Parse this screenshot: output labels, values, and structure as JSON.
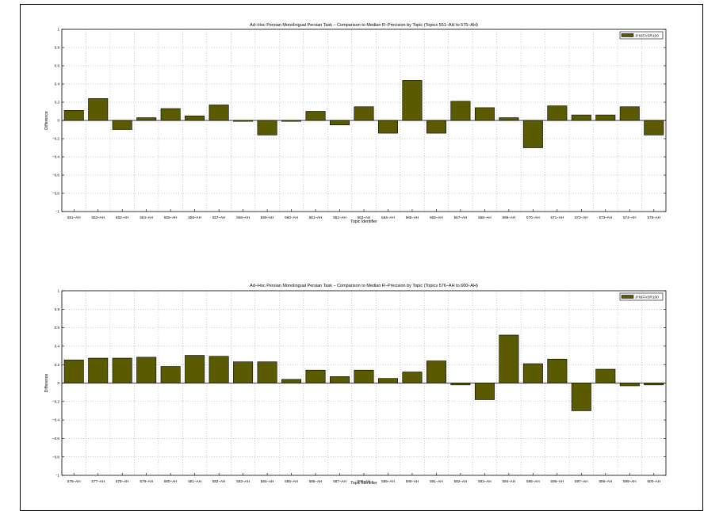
{
  "chart_data": [
    {
      "type": "bar",
      "title": "Ad–Hoc Persian Monolingual Persian Task – Comparison to Median R–Precision by Topic (Topics 551–AH to 575–AH)",
      "xlabel": "Topic Identifier",
      "ylabel": "Difference",
      "ylim": [
        -1,
        1
      ],
      "yticks": [
        "−1",
        "−0.8",
        "−0.6",
        "−0.4",
        "−0.2",
        "0",
        "0.2",
        "0.4",
        "0.6",
        "0.8",
        "1"
      ],
      "grid": true,
      "legend_position": "top-right",
      "series": [
        {
          "name": "JHUFASR100",
          "color": "#5a5a00"
        }
      ],
      "categories": [
        "551–AH",
        "552–AH",
        "553–AH",
        "554–AH",
        "555–AH",
        "556–AH",
        "557–AH",
        "558–AH",
        "559–AH",
        "560–AH",
        "561–AH",
        "562–AH",
        "563–AH",
        "564–AH",
        "565–AH",
        "566–AH",
        "567–AH",
        "568–AH",
        "569–AH",
        "570–AH",
        "571–AH",
        "572–AH",
        "573–AH",
        "574–AH",
        "575–AH"
      ],
      "values": [
        0.11,
        0.24,
        -0.1,
        0.03,
        0.13,
        0.05,
        0.17,
        -0.01,
        -0.16,
        -0.01,
        0.1,
        -0.05,
        0.15,
        -0.14,
        0.44,
        -0.14,
        0.21,
        0.14,
        0.03,
        -0.3,
        0.16,
        0.06,
        0.06,
        0.15,
        -0.16
      ]
    },
    {
      "type": "bar",
      "title": "Ad–Hoc Persian Monolingual Persian Task – Comparison to Median R–Precision by Topic (Topics 576–AH to 600–AH)",
      "xlabel": "Topic Identifier",
      "ylabel": "Difference",
      "ylim": [
        -1,
        1
      ],
      "yticks": [
        "−1",
        "−0.8",
        "−0.6",
        "−0.4",
        "−0.2",
        "0",
        "0.2",
        "0.4",
        "0.6",
        "0.8",
        "1"
      ],
      "grid": true,
      "legend_position": "top-right",
      "series": [
        {
          "name": "JHUFASR100",
          "color": "#5a5a00"
        }
      ],
      "categories": [
        "576–AH",
        "577–AH",
        "578–AH",
        "579–AH",
        "580–AH",
        "581–AH",
        "582–AH",
        "583–AH",
        "584–AH",
        "585–AH",
        "586–AH",
        "587–AH",
        "588–AH",
        "589–AH",
        "590–AH",
        "591–AH",
        "592–AH",
        "593–AH",
        "594–AH",
        "595–AH",
        "596–AH",
        "597–AH",
        "598–AH",
        "599–AH",
        "600–AH"
      ],
      "values": [
        0.25,
        0.27,
        0.27,
        0.28,
        0.18,
        0.3,
        0.29,
        0.23,
        0.23,
        0.04,
        0.14,
        0.07,
        0.14,
        0.05,
        0.12,
        0.24,
        -0.02,
        -0.18,
        0.52,
        0.21,
        0.26,
        -0.3,
        0.15,
        -0.03,
        -0.02
      ]
    }
  ]
}
